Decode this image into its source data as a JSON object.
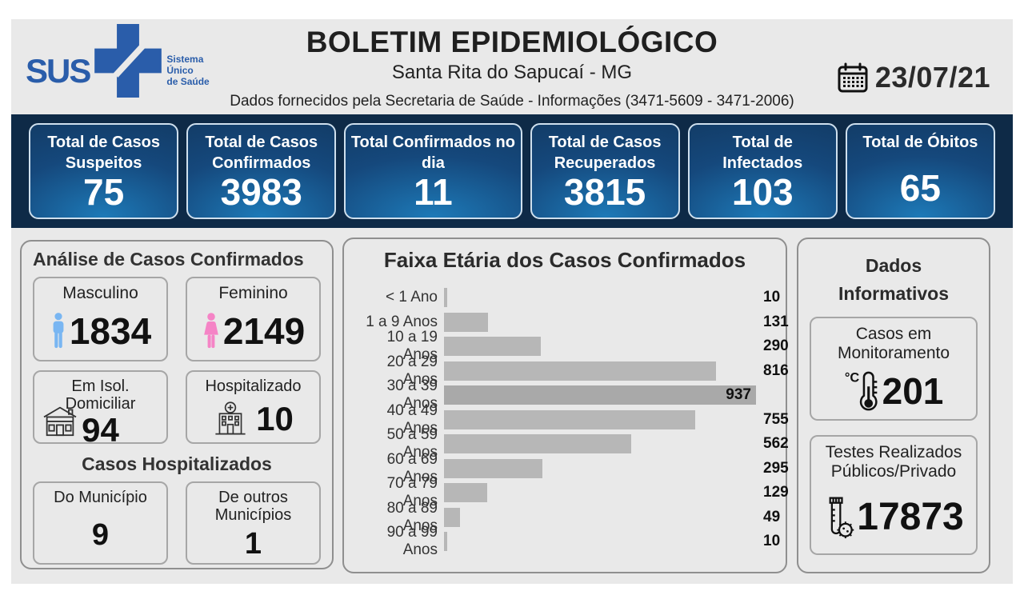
{
  "header": {
    "logo_text": "SUS",
    "logo_subtitle": "Sistema\nÚnico\nde Saúde",
    "title": "BOLETIM EPIDEMIOLÓGICO",
    "subtitle": "Santa Rita do Sapucaí - MG",
    "info_line": "Dados fornecidos pela Secretaria de Saúde - Informações (3471-5609 - 3471-2006)",
    "date": "23/07/21"
  },
  "colors": {
    "bar_background": "#0e2a47",
    "card_gradient_dark": "#123a63",
    "card_gradient_light": "#1d7ab8",
    "sus_blue": "#2a5daa",
    "male_blue": "#79b6f2",
    "female_pink": "#f584c6",
    "chart_bar": "#b7b7b7",
    "panel_background": "#e9e9e9"
  },
  "summary_cards": [
    {
      "label": "Total de Casos Suspeitos",
      "value": "75"
    },
    {
      "label": "Total de Casos Confirmados",
      "value": "3983"
    },
    {
      "label": "Total Confirmados no dia",
      "value": "11"
    },
    {
      "label": "Total de Casos Recuperados",
      "value": "3815"
    },
    {
      "label": "Total de Infectados",
      "value": "103"
    },
    {
      "label": "Total de Óbitos",
      "value": "65"
    }
  ],
  "analysis": {
    "title": "Análise de Casos Confirmados",
    "male": {
      "label": "Masculino",
      "value": "1834"
    },
    "female": {
      "label": "Feminino",
      "value": "2149"
    },
    "isolation": {
      "label": "Em Isol. Domiciliar",
      "value": "94"
    },
    "hospitalized": {
      "label": "Hospitalizado",
      "value": "10"
    },
    "hospitalized_section_title": "Casos Hospitalizados",
    "municipality": {
      "label": "Do Município",
      "value": "9"
    },
    "other_municipalities": {
      "label": "De outros Municípios",
      "value": "1"
    }
  },
  "chart_data": {
    "type": "bar",
    "orientation": "horizontal",
    "title": "Faixa Etária dos Casos Confirmados",
    "categories": [
      "< 1 Ano",
      "1 a 9 Anos",
      "10 a 19 Anos",
      "20 a 29 Anos",
      "30 a 39 Anos",
      "40 a 49 Anos",
      "50 a 59 Anos",
      "60 a 69 Anos",
      "70 a 79 Anos",
      "80 a 89 Anos",
      "90 a 99 Anos"
    ],
    "values": [
      10,
      131,
      290,
      816,
      937,
      755,
      562,
      295,
      129,
      49,
      10
    ],
    "xlabel": "",
    "ylabel": "",
    "xlim": [
      0,
      937
    ],
    "grid": false,
    "legend": false,
    "value_labels": true
  },
  "info_panel": {
    "title": "Dados Informativos",
    "monitoring": {
      "label": "Casos em Monitoramento",
      "value": "201"
    },
    "tests": {
      "label": "Testes Realizados Públicos/Privado",
      "value": "17873"
    }
  }
}
